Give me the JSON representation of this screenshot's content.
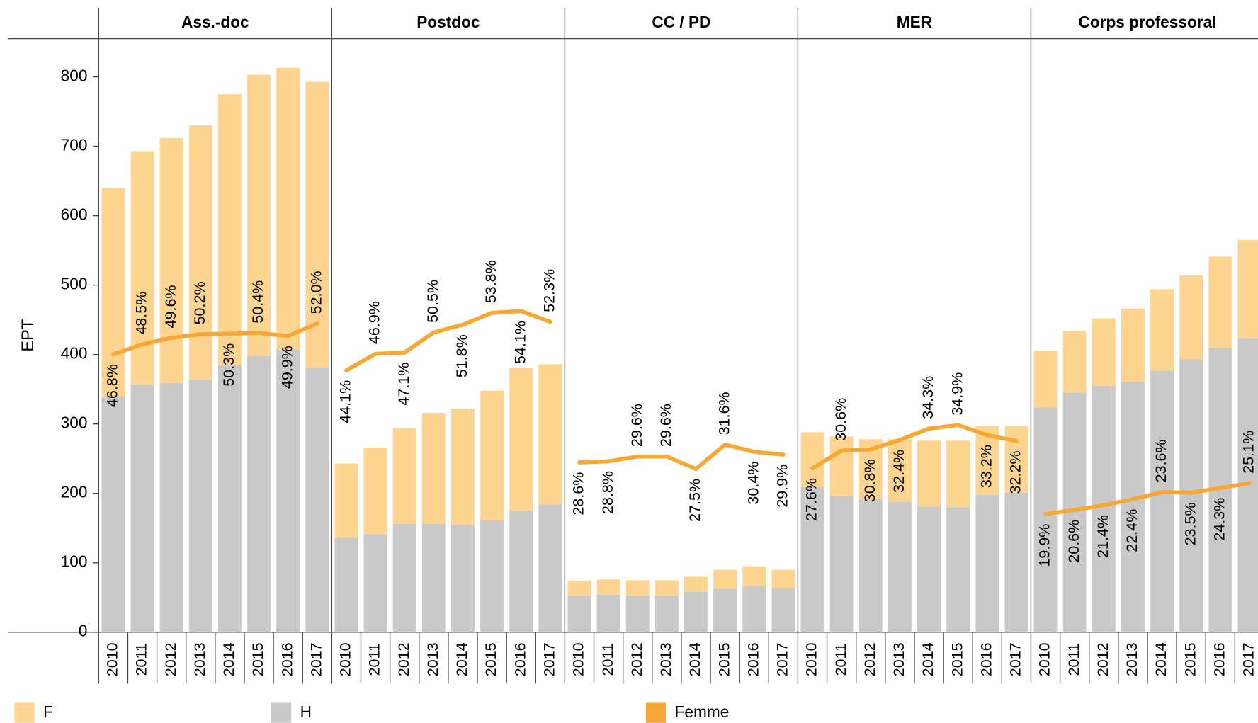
{
  "chart_data": {
    "type": "bar",
    "stacked": true,
    "ylabel": "EPT",
    "ylim": [
      0,
      855
    ],
    "yticks": [
      0,
      100,
      200,
      300,
      400,
      500,
      600,
      700,
      800
    ],
    "y2lim": [
      0,
      100
    ],
    "panels": [
      {
        "title": "Ass.-doc",
        "categories": [
          "2010",
          "2011",
          "2012",
          "2013",
          "2014",
          "2015",
          "2016",
          "2017"
        ],
        "series": [
          {
            "name": "F",
            "color": "#fdd590",
            "values": [
              300,
              336,
              353,
              366,
              390,
              405,
              406,
              412
            ]
          },
          {
            "name": "H",
            "color": "#c9c9c9",
            "values": [
              340,
              357,
              359,
              364,
              385,
              398,
              407,
              381
            ]
          },
          {
            "name": "Femme",
            "type": "line",
            "axis": "y2",
            "color": "#f7a733",
            "values": [
              46.8,
              48.5,
              49.6,
              50.2,
              50.3,
              50.4,
              49.9,
              52.0
            ],
            "value_labels": [
              "46.8%",
              "48.5%",
              "49.6%",
              "50.2%",
              "50.3%",
              "50.4%",
              "49.9%",
              "52.0%"
            ]
          }
        ]
      },
      {
        "title": "Postdoc",
        "categories": [
          "2010",
          "2011",
          "2012",
          "2013",
          "2014",
          "2015",
          "2016",
          "2017"
        ],
        "series": [
          {
            "name": "F",
            "color": "#fdd590",
            "values": [
              107,
              125,
              138,
              160,
              167,
              187,
              206,
              202
            ]
          },
          {
            "name": "H",
            "color": "#c9c9c9",
            "values": [
              136,
              141,
              156,
              156,
              155,
              161,
              175,
              184
            ]
          },
          {
            "name": "Femme",
            "type": "line",
            "axis": "y2",
            "color": "#f7a733",
            "values": [
              44.1,
              46.9,
              47.1,
              50.5,
              51.8,
              53.8,
              54.1,
              52.3
            ],
            "value_labels": [
              "44.1%",
              "46.9%",
              "47.1%",
              "50.5%",
              "51.8%",
              "53.8%",
              "54.1%",
              "52.3%"
            ]
          }
        ]
      },
      {
        "title": "CC / PD",
        "categories": [
          "2010",
          "2011",
          "2012",
          "2013",
          "2014",
          "2015",
          "2016",
          "2017"
        ],
        "series": [
          {
            "name": "F",
            "color": "#fdd590",
            "values": [
              21,
              22,
              22,
              22,
              22,
              28,
              29,
              27
            ]
          },
          {
            "name": "H",
            "color": "#c9c9c9",
            "values": [
              53,
              54,
              53,
              53,
              58,
              62,
              66,
              63
            ]
          },
          {
            "name": "Femme",
            "type": "line",
            "axis": "y2",
            "color": "#f7a733",
            "values": [
              28.6,
              28.8,
              29.6,
              29.6,
              27.5,
              31.6,
              30.4,
              29.9
            ],
            "value_labels": [
              "28.6%",
              "28.8%",
              "29.6%",
              "29.6%",
              "27.5%",
              "31.6%",
              "30.4%",
              "29.9%"
            ]
          }
        ]
      },
      {
        "title": "MER",
        "categories": [
          "2010",
          "2011",
          "2012",
          "2013",
          "2014",
          "2015",
          "2016",
          "2017"
        ],
        "series": [
          {
            "name": "F",
            "color": "#fdd590",
            "values": [
              79,
              86,
              86,
              90,
              95,
              96,
              99,
              96
            ]
          },
          {
            "name": "H",
            "color": "#c9c9c9",
            "values": [
              209,
              196,
              192,
              188,
              181,
              180,
              198,
              201
            ]
          },
          {
            "name": "Femme",
            "type": "line",
            "axis": "y2",
            "color": "#f7a733",
            "values": [
              27.6,
              30.6,
              30.8,
              32.4,
              34.3,
              34.9,
              33.2,
              32.2
            ],
            "value_labels": [
              "27.6%",
              "30.6%",
              "30.8%",
              "32.4%",
              "34.3%",
              "34.9%",
              "33.2%",
              "32.2%"
            ]
          }
        ]
      },
      {
        "title": "Corps professoral",
        "categories": [
          "2010",
          "2011",
          "2012",
          "2013",
          "2014",
          "2015",
          "2016",
          "2017"
        ],
        "series": [
          {
            "name": "F",
            "color": "#fdd590",
            "values": [
              81,
              89,
              97,
              105,
              117,
              121,
              131,
              142
            ]
          },
          {
            "name": "H",
            "color": "#c9c9c9",
            "values": [
              324,
              345,
              355,
              361,
              377,
              393,
              410,
              423
            ]
          },
          {
            "name": "Femme",
            "type": "line",
            "axis": "y2",
            "color": "#f7a733",
            "values": [
              19.9,
              20.6,
              21.4,
              22.4,
              23.6,
              23.5,
              24.3,
              25.1
            ],
            "value_labels": [
              "19.9%",
              "20.6%",
              "21.4%",
              "22.4%",
              "23.6%",
              "23.5%",
              "24.3%",
              "25.1%"
            ]
          }
        ]
      }
    ]
  }
}
